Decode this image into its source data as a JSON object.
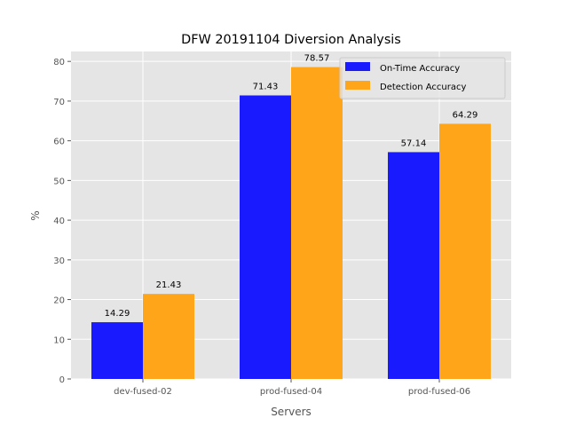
{
  "chart_data": {
    "type": "bar",
    "title": "DFW 20191104 Diversion Analysis",
    "xlabel": "Servers",
    "ylabel": "%",
    "categories": [
      "dev-fused-02",
      "prod-fused-04",
      "prod-fused-06"
    ],
    "series": [
      {
        "name": "On-Time Accuracy",
        "color": "#1a1aff",
        "values": [
          14.29,
          71.43,
          57.14
        ],
        "labels": [
          "14.29",
          "71.43",
          "57.14"
        ]
      },
      {
        "name": "Detection Accuracy",
        "color": "#ffa51a",
        "values": [
          21.43,
          78.57,
          64.29
        ],
        "labels": [
          "21.43",
          "78.57",
          "64.29"
        ]
      }
    ],
    "ylim": [
      0,
      82.5
    ],
    "yticks": [
      0,
      10,
      20,
      30,
      40,
      50,
      60,
      70,
      80
    ],
    "ytick_labels": [
      "0",
      "10",
      "20",
      "30",
      "40",
      "50",
      "60",
      "70",
      "80"
    ],
    "grid": true,
    "legend_position": "top-right",
    "style": "ggplot"
  }
}
